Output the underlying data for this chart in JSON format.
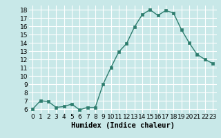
{
  "x": [
    0,
    1,
    2,
    3,
    4,
    5,
    6,
    7,
    8,
    9,
    10,
    11,
    12,
    13,
    14,
    15,
    16,
    17,
    18,
    19,
    20,
    21,
    22,
    23
  ],
  "y": [
    6.0,
    7.0,
    6.9,
    6.2,
    6.3,
    6.6,
    5.9,
    6.2,
    6.2,
    9.0,
    11.0,
    12.9,
    13.9,
    15.9,
    17.4,
    18.0,
    17.3,
    17.9,
    17.6,
    15.6,
    14.0,
    12.6,
    12.0,
    11.5
  ],
  "line_color": "#2e7d6e",
  "marker_color": "#2e7d6e",
  "bg_color": "#c8e8e8",
  "grid_color": "#ffffff",
  "xlabel": "Humidex (Indice chaleur)",
  "ylim": [
    5.5,
    18.5
  ],
  "xlim": [
    -0.5,
    23.5
  ],
  "yticks": [
    6,
    7,
    8,
    9,
    10,
    11,
    12,
    13,
    14,
    15,
    16,
    17,
    18
  ],
  "xticks": [
    0,
    1,
    2,
    3,
    4,
    5,
    6,
    7,
    8,
    9,
    10,
    11,
    12,
    13,
    14,
    15,
    16,
    17,
    18,
    19,
    20,
    21,
    22,
    23
  ],
  "xlabel_fontsize": 7.5,
  "tick_fontsize": 6.5,
  "line_width": 1.0,
  "marker_size": 2.5
}
